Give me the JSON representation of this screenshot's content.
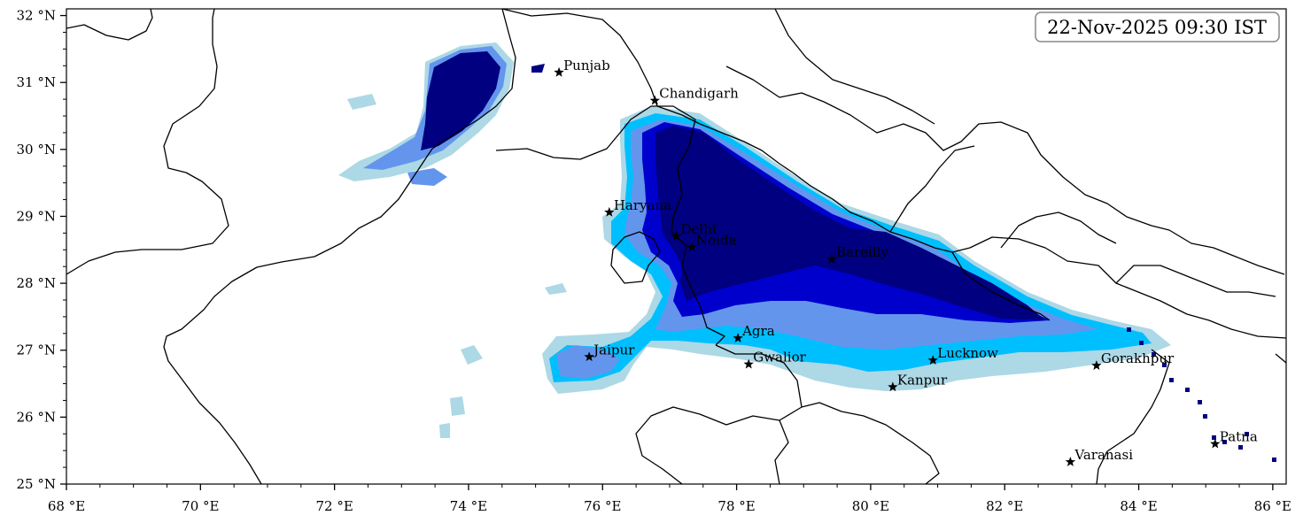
{
  "timestamp": "22-Nov-2025 09:30 IST",
  "x_ticks": [
    "68 °E",
    "70 °E",
    "72 °E",
    "74 °E",
    "76 °E",
    "78 °E",
    "80 °E",
    "82 °E",
    "84 °E",
    "86 °E"
  ],
  "y_ticks": [
    "25 °N",
    "26 °N",
    "27 °N",
    "28 °N",
    "29 °N",
    "30 °N",
    "31 °N",
    "32 °N"
  ],
  "map": {
    "lon_range": [
      68,
      86.2
    ],
    "lat_range": [
      25,
      32.1
    ],
    "colors": {
      "light": "#add8e6",
      "cyan": "#00bfff",
      "mid": "#6495ed",
      "blue": "#0000cd",
      "navy": "#000080"
    }
  },
  "cities": [
    {
      "name": "Punjab",
      "lon": 75.35,
      "lat": 31.15
    },
    {
      "name": "Chandigarh",
      "lon": 76.78,
      "lat": 30.73
    },
    {
      "name": "Haryana",
      "lon": 76.1,
      "lat": 29.06
    },
    {
      "name": "Delhi",
      "lon": 77.1,
      "lat": 28.7
    },
    {
      "name": "Noida",
      "lon": 77.33,
      "lat": 28.54
    },
    {
      "name": "Bareilly",
      "lon": 79.42,
      "lat": 28.36
    },
    {
      "name": "Agra",
      "lon": 78.02,
      "lat": 27.18
    },
    {
      "name": "Jaipur",
      "lon": 75.8,
      "lat": 26.9
    },
    {
      "name": "Gwalior",
      "lon": 78.18,
      "lat": 26.79
    },
    {
      "name": "Lucknow",
      "lon": 80.93,
      "lat": 26.85
    },
    {
      "name": "Gorakhpur",
      "lon": 83.37,
      "lat": 26.77
    },
    {
      "name": "Kanpur",
      "lon": 80.33,
      "lat": 26.45
    },
    {
      "name": "Varanasi",
      "lon": 82.98,
      "lat": 25.33
    },
    {
      "name": "Patna",
      "lon": 85.14,
      "lat": 25.6
    }
  ]
}
